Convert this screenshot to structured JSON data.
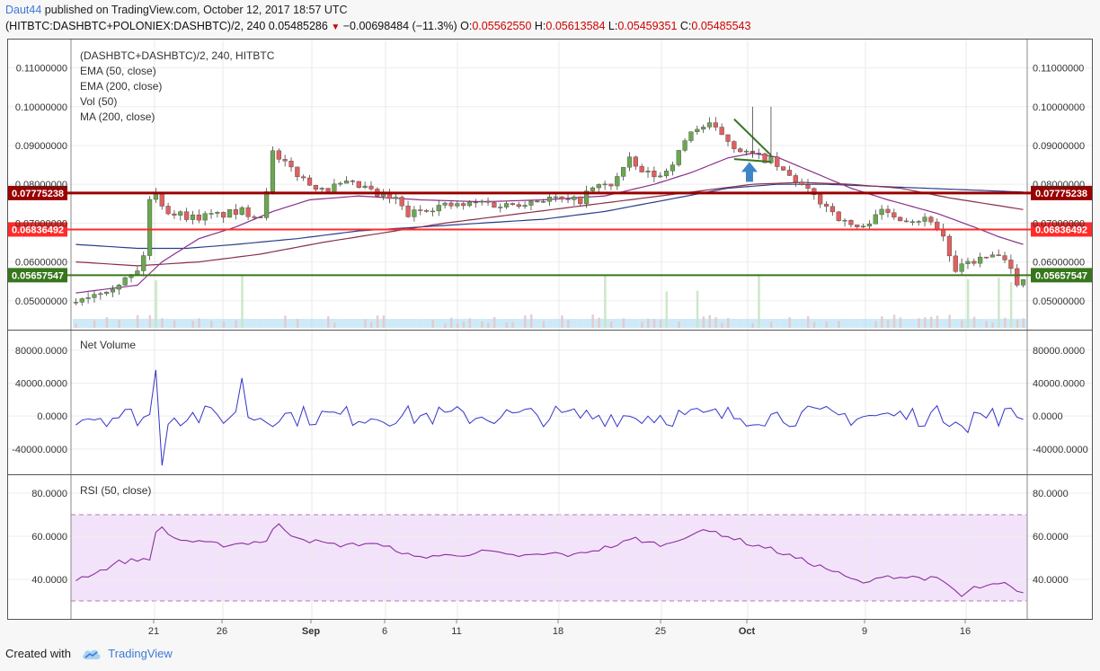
{
  "header": {
    "author": "Daut44",
    "published_text": "published on TradingView.com, October 12, 2017 18:57 UTC",
    "symbol": "(HITBTC:DASHBTC+POLONIEX:DASHBTC)/2, 240",
    "last": "0.05485286",
    "change": "−0.00698484 (−11.3%)",
    "o_label": "O:",
    "o": "0.05562550",
    "h_label": "H:",
    "h": "0.05613584",
    "l_label": "L:",
    "l": "0.05459351",
    "c_label": "C:",
    "c": "0.05485543"
  },
  "legend": {
    "title": "(DASHBTC+DASHBTC)/2, 240, HITBTC",
    "ema50": "EMA (50, close)",
    "ema200": "EMA (200, close)",
    "vol": "Vol (50)",
    "ma200": "MA (200, close)",
    "net_volume": "Net Volume",
    "rsi": "RSI (50, close)"
  },
  "footer": {
    "created_with": "Created with",
    "brand": "TradingView"
  },
  "colors": {
    "up": "#6aa84f",
    "down": "#e06060",
    "ema50": "#8a2f8a",
    "ema200": "#8a2f4a",
    "ma200": "#2b3f8a",
    "volume": "#a6d8f2",
    "netvol": "#3333cc",
    "rsi": "#8a2fa0",
    "rsi_band": "#f3e3fa",
    "level_dark": "#990000",
    "level_red": "#ff2a2a",
    "level_green": "#38761d",
    "arrow": "#3d85c6"
  },
  "chart_data": [
    {
      "type": "candlestick",
      "title": "(DASHBTC+DASHBTC)/2, 240, HITBTC",
      "x_ticks": [
        "21",
        "26",
        "Sep",
        "6",
        "11",
        "18",
        "25",
        "Oct",
        "9",
        "16"
      ],
      "y_ticks": [
        "0.11000000",
        "0.10000000",
        "0.09000000",
        "0.08000000",
        "0.07000000",
        "0.06000000",
        "0.05000000"
      ],
      "ylim": [
        0.043,
        0.115
      ],
      "price_path": [
        [
          0,
          0.0495
        ],
        [
          4,
          0.052
        ],
        [
          7,
          0.054
        ],
        [
          9,
          0.0555
        ],
        [
          11,
          0.0575
        ],
        [
          12,
          0.062
        ],
        [
          13,
          0.076
        ],
        [
          14,
          0.0775
        ],
        [
          16,
          0.073
        ],
        [
          20,
          0.0715
        ],
        [
          24,
          0.072
        ],
        [
          28,
          0.073
        ],
        [
          31,
          0.072
        ],
        [
          32,
          0.079
        ],
        [
          33,
          0.088
        ],
        [
          34,
          0.086
        ],
        [
          36,
          0.084
        ],
        [
          39,
          0.08
        ],
        [
          42,
          0.079
        ],
        [
          45,
          0.08
        ],
        [
          48,
          0.079
        ],
        [
          50,
          0.077
        ],
        [
          53,
          0.076
        ],
        [
          55,
          0.072
        ],
        [
          58,
          0.074
        ],
        [
          61,
          0.0745
        ],
        [
          64,
          0.0745
        ],
        [
          67,
          0.0755
        ],
        [
          70,
          0.0745
        ],
        [
          74,
          0.0755
        ],
        [
          78,
          0.0765
        ],
        [
          81,
          0.0755
        ],
        [
          83,
          0.076
        ],
        [
          85,
          0.079
        ],
        [
          88,
          0.08
        ],
        [
          91,
          0.086
        ],
        [
          93,
          0.083
        ],
        [
          96,
          0.082
        ],
        [
          99,
          0.088
        ],
        [
          101,
          0.094
        ],
        [
          104,
          0.095
        ],
        [
          106,
          0.093
        ],
        [
          108,
          0.09
        ],
        [
          110,
          0.088
        ],
        [
          112,
          0.087
        ],
        [
          114,
          0.086
        ],
        [
          116,
          0.083
        ],
        [
          118,
          0.081
        ],
        [
          120,
          0.078
        ],
        [
          123,
          0.0745
        ],
        [
          126,
          0.07
        ],
        [
          129,
          0.0685
        ],
        [
          131,
          0.073
        ],
        [
          134,
          0.072
        ],
        [
          137,
          0.071
        ],
        [
          140,
          0.071
        ],
        [
          142,
          0.0665
        ],
        [
          144,
          0.057
        ],
        [
          146,
          0.06
        ],
        [
          149,
          0.061
        ],
        [
          151,
          0.0615
        ],
        [
          153,
          0.0575
        ],
        [
          154,
          0.055
        ]
      ],
      "ema50_path": [
        [
          0,
          0.052
        ],
        [
          10,
          0.054
        ],
        [
          14,
          0.06
        ],
        [
          20,
          0.066
        ],
        [
          26,
          0.069
        ],
        [
          32,
          0.073
        ],
        [
          38,
          0.076
        ],
        [
          46,
          0.077
        ],
        [
          56,
          0.076
        ],
        [
          66,
          0.0755
        ],
        [
          76,
          0.076
        ],
        [
          86,
          0.077
        ],
        [
          94,
          0.08
        ],
        [
          100,
          0.083
        ],
        [
          106,
          0.0868
        ],
        [
          110,
          0.088
        ],
        [
          114,
          0.087
        ],
        [
          120,
          0.083
        ],
        [
          126,
          0.079
        ],
        [
          132,
          0.076
        ],
        [
          140,
          0.0725
        ],
        [
          146,
          0.069
        ],
        [
          150,
          0.0665
        ],
        [
          154,
          0.0645
        ]
      ],
      "ema200_path": [
        [
          0,
          0.06
        ],
        [
          10,
          0.059
        ],
        [
          20,
          0.06
        ],
        [
          30,
          0.062
        ],
        [
          40,
          0.065
        ],
        [
          50,
          0.0675
        ],
        [
          60,
          0.07
        ],
        [
          70,
          0.072
        ],
        [
          80,
          0.074
        ],
        [
          90,
          0.076
        ],
        [
          100,
          0.078
        ],
        [
          110,
          0.08
        ],
        [
          118,
          0.0805
        ],
        [
          126,
          0.08
        ],
        [
          134,
          0.079
        ],
        [
          142,
          0.0765
        ],
        [
          150,
          0.0745
        ],
        [
          154,
          0.0735
        ]
      ],
      "ma200_path": [
        [
          0,
          0.0645
        ],
        [
          10,
          0.0635
        ],
        [
          18,
          0.0635
        ],
        [
          26,
          0.0645
        ],
        [
          36,
          0.066
        ],
        [
          46,
          0.068
        ],
        [
          56,
          0.069
        ],
        [
          66,
          0.07
        ],
        [
          76,
          0.071
        ],
        [
          86,
          0.073
        ],
        [
          96,
          0.076
        ],
        [
          106,
          0.079
        ],
        [
          114,
          0.08
        ],
        [
          122,
          0.08
        ],
        [
          130,
          0.0795
        ],
        [
          138,
          0.079
        ],
        [
          146,
          0.0785
        ],
        [
          154,
          0.078
        ]
      ],
      "levels": [
        {
          "value": 0.07775238,
          "label": "0.07775238",
          "color": "#990000"
        },
        {
          "value": 0.06836492,
          "label": "0.06836492",
          "color": "#ff2a2a"
        },
        {
          "value": 0.05657547,
          "label": "0.05657547",
          "color": "#38761d"
        }
      ],
      "annotations": [
        {
          "type": "trendline",
          "from": [
            107,
            0.0968
          ],
          "to": [
            113,
            0.0875
          ],
          "color": "#38761d"
        },
        {
          "type": "trendline",
          "from": [
            107,
            0.0865
          ],
          "to": [
            113,
            0.0858
          ],
          "color": "#38761d"
        },
        {
          "type": "arrow-up",
          "x": 109.5,
          "y": 0.0862,
          "color": "#3d85c6"
        }
      ],
      "volume_spikes": [
        13,
        27,
        86,
        96,
        101,
        111,
        145,
        150,
        152
      ]
    },
    {
      "type": "line",
      "title": "Net Volume",
      "y_ticks": [
        "80000.0000",
        "40000.0000",
        "0.0000",
        "-40000.0000"
      ],
      "ylim": [
        -62000,
        95000
      ],
      "spikes": [
        [
          13,
          56000
        ],
        [
          14,
          -60000
        ],
        [
          27,
          46000
        ],
        [
          145,
          -20000
        ]
      ]
    },
    {
      "type": "line",
      "title": "RSI (50, close)",
      "y_ticks": [
        "80.0000",
        "60.0000",
        "40.0000"
      ],
      "ylim": [
        25,
        85
      ],
      "band": [
        30,
        70
      ],
      "values": [
        [
          0,
          40
        ],
        [
          4,
          44
        ],
        [
          7,
          48
        ],
        [
          10,
          49
        ],
        [
          12,
          50
        ],
        [
          13,
          61
        ],
        [
          14,
          64
        ],
        [
          16,
          59
        ],
        [
          20,
          57
        ],
        [
          24,
          56
        ],
        [
          28,
          57
        ],
        [
          31,
          58
        ],
        [
          32,
          63
        ],
        [
          33,
          65
        ],
        [
          35,
          61
        ],
        [
          38,
          58
        ],
        [
          42,
          56
        ],
        [
          45,
          56
        ],
        [
          48,
          57
        ],
        [
          50,
          55
        ],
        [
          52,
          54
        ],
        [
          55,
          50
        ],
        [
          58,
          51
        ],
        [
          61,
          51
        ],
        [
          64,
          52
        ],
        [
          67,
          53
        ],
        [
          70,
          51
        ],
        [
          74,
          51
        ],
        [
          78,
          52
        ],
        [
          81,
          51
        ],
        [
          83,
          53
        ],
        [
          85,
          54
        ],
        [
          88,
          56
        ],
        [
          91,
          59
        ],
        [
          93,
          57
        ],
        [
          96,
          56
        ],
        [
          99,
          60
        ],
        [
          101,
          62
        ],
        [
          104,
          62
        ],
        [
          106,
          60
        ],
        [
          108,
          58
        ],
        [
          110,
          56
        ],
        [
          112,
          55
        ],
        [
          114,
          53
        ],
        [
          116,
          51
        ],
        [
          118,
          49
        ],
        [
          120,
          47
        ],
        [
          123,
          44
        ],
        [
          126,
          40
        ],
        [
          129,
          38
        ],
        [
          131,
          42
        ],
        [
          134,
          41
        ],
        [
          137,
          41
        ],
        [
          140,
          40
        ],
        [
          142,
          37
        ],
        [
          144,
          32
        ],
        [
          146,
          36
        ],
        [
          149,
          37
        ],
        [
          151,
          38
        ],
        [
          153,
          34
        ],
        [
          154,
          33
        ]
      ]
    }
  ]
}
